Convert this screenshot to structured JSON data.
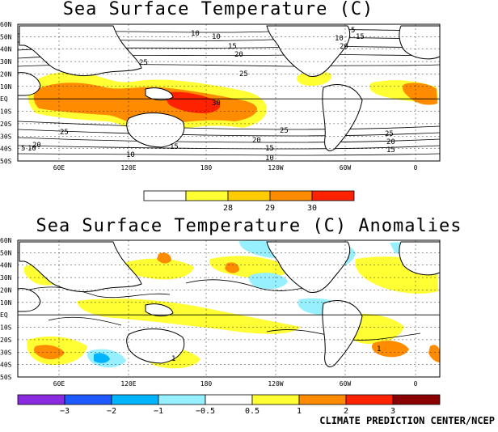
{
  "credit": "CLIMATE PREDICTION CENTER/NCEP",
  "maps": [
    {
      "id": "sst",
      "title": "Sea Surface Temperature (C)",
      "lat_labels": [
        "60N",
        "50N",
        "40N",
        "30N",
        "20N",
        "10N",
        "EQ",
        "10S",
        "20S",
        "30S",
        "40S",
        "50S"
      ],
      "lon_labels": [
        "60E",
        "120E",
        "180",
        "120W",
        "60W",
        "0"
      ],
      "contour_labels": [
        "10",
        "15",
        "20",
        "25",
        "30",
        "25",
        "20",
        "15",
        "10",
        "25",
        "20",
        "15",
        "10",
        "25",
        "20",
        "15",
        "10",
        "5",
        "10",
        "15",
        "20",
        "25",
        "5",
        "10"
      ],
      "colorbar": {
        "labels": [
          "28",
          "29",
          "30"
        ],
        "colors": [
          "#ffffff",
          "#ffff33",
          "#ffcc00",
          "#ff8c00",
          "#ff2200"
        ]
      }
    },
    {
      "id": "anom",
      "title": "Sea Surface Temperature (C) Anomalies",
      "lat_labels": [
        "60N",
        "50N",
        "40N",
        "30N",
        "20N",
        "10N",
        "EQ",
        "10S",
        "20S",
        "30S",
        "40S",
        "50S"
      ],
      "lon_labels": [
        "60E",
        "120E",
        "180",
        "120W",
        "60W",
        "0"
      ],
      "contour_labels": [
        "1",
        "1"
      ],
      "colorbar": {
        "labels": [
          "−3",
          "−2",
          "−1",
          "−0.5",
          "0.5",
          "1",
          "2",
          "3"
        ],
        "colors": [
          "#8a2be2",
          "#1e5aff",
          "#00b4ff",
          "#96f0ff",
          "#ffffff",
          "#ffff33",
          "#ff8c00",
          "#ff2200",
          "#8b0000"
        ]
      }
    }
  ]
}
